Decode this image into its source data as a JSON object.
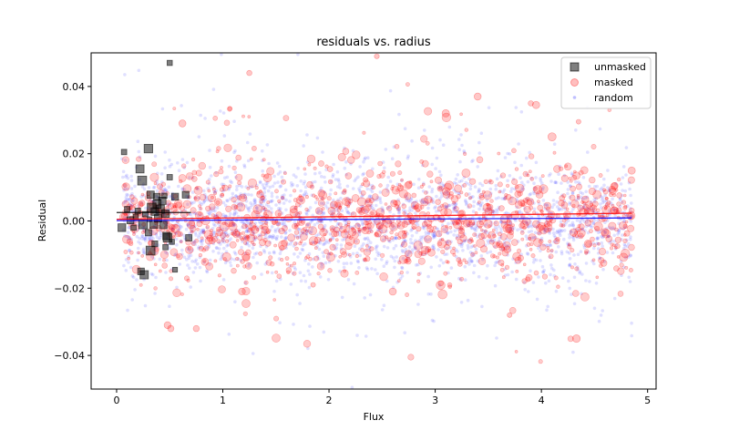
{
  "chart_data": {
    "type": "scatter",
    "title": "residuals vs. radius",
    "xlabel": "Flux",
    "ylabel": "Residual",
    "xlim": [
      -0.24,
      5.08
    ],
    "ylim": [
      -0.05,
      0.05
    ],
    "xticks": [
      0,
      1,
      2,
      3,
      4,
      5
    ],
    "yticks": [
      -0.04,
      -0.02,
      0.0,
      0.02,
      0.04
    ],
    "xtick_labels": [
      "0",
      "1",
      "2",
      "3",
      "4",
      "5"
    ],
    "ytick_labels": [
      "−0.04",
      "−0.02",
      "0.00",
      "0.02",
      "0.04"
    ],
    "grid": false,
    "legend": {
      "placement": "top-right",
      "entries": [
        {
          "label": "unmasked",
          "marker": "square",
          "color": "#000000",
          "alpha": 0.5
        },
        {
          "label": "masked",
          "marker": "circle",
          "color": "#ff0000",
          "alpha": 0.25
        },
        {
          "label": "random",
          "marker": "dot",
          "color": "#0000ff",
          "alpha": 0.12
        }
      ]
    },
    "series": [
      {
        "name": "unmasked",
        "marker": "square",
        "color": "#000000",
        "points": [
          [
            0.5,
            0.047
          ],
          [
            0.07,
            0.0205
          ],
          [
            0.3,
            0.0215
          ],
          [
            0.22,
            0.0155
          ],
          [
            0.24,
            0.012
          ],
          [
            0.5,
            0.013
          ],
          [
            0.65,
            0.0078
          ],
          [
            0.32,
            0.0078
          ],
          [
            0.38,
            0.0072
          ],
          [
            0.45,
            0.0075
          ],
          [
            0.55,
            0.0072
          ],
          [
            0.43,
            0.006
          ],
          [
            0.38,
            0.005
          ],
          [
            0.33,
            0.004
          ],
          [
            0.41,
            0.0035
          ],
          [
            0.2,
            0.003
          ],
          [
            0.1,
            0.0035
          ],
          [
            0.27,
            0.002
          ],
          [
            0.36,
            0.0028
          ],
          [
            0.46,
            0.0022
          ],
          [
            0.18,
            0.0012
          ],
          [
            0.31,
            0.0005
          ],
          [
            0.39,
            0.0008
          ],
          [
            0.13,
            0.0002
          ],
          [
            0.05,
            -0.002
          ],
          [
            0.25,
            -0.001
          ],
          [
            0.44,
            -0.0012
          ],
          [
            0.3,
            -0.0035
          ],
          [
            0.47,
            -0.0045
          ],
          [
            0.68,
            -0.005
          ],
          [
            0.52,
            -0.0062
          ],
          [
            0.36,
            -0.0068
          ],
          [
            0.46,
            -0.0078
          ],
          [
            0.32,
            -0.0088
          ],
          [
            0.23,
            -0.015
          ],
          [
            0.26,
            -0.016
          ],
          [
            0.55,
            -0.0145
          ],
          [
            0.35,
            -0.001
          ],
          [
            0.48,
            -0.005
          ],
          [
            0.16,
            -0.002
          ]
        ],
        "trend": {
          "x": [
            0,
            0.7
          ],
          "y": [
            0.0025,
            0.0025
          ],
          "color": "#000000"
        }
      },
      {
        "name": "masked",
        "marker": "circle",
        "color": "#ff0000",
        "count": 1100,
        "x_range": [
          0.05,
          4.85
        ],
        "y_spread": 0.0085,
        "highlighted_points": [
          [
            1.25,
            0.044
          ],
          [
            2.45,
            0.049
          ],
          [
            3.9,
            0.035
          ],
          [
            3.95,
            0.0345
          ],
          [
            3.4,
            0.037
          ],
          [
            4.35,
            0.0295
          ],
          [
            4.1,
            0.025
          ],
          [
            0.62,
            0.029
          ],
          [
            0.48,
            -0.031
          ],
          [
            0.51,
            -0.032
          ],
          [
            0.75,
            -0.032
          ],
          [
            4.33,
            -0.035
          ],
          [
            1.18,
            -0.021
          ],
          [
            3.7,
            -0.028
          ],
          [
            4.85,
            0.015
          ],
          [
            3.1,
            0.032
          ],
          [
            1.85,
            -0.019
          ],
          [
            2.6,
            -0.021
          ]
        ],
        "trend": {
          "x": [
            0,
            4.85
          ],
          "y": [
            0.0005,
            0.0023
          ],
          "color": "#ff0000"
        }
      },
      {
        "name": "random",
        "marker": "dot",
        "color": "#0000ff",
        "count": 2200,
        "x_range": [
          0.05,
          4.85
        ],
        "y_spread": 0.0085,
        "trend": {
          "x": [
            0,
            4.85
          ],
          "y": [
            0.0001,
            0.0009
          ],
          "color": "#0000ff"
        }
      }
    ]
  }
}
